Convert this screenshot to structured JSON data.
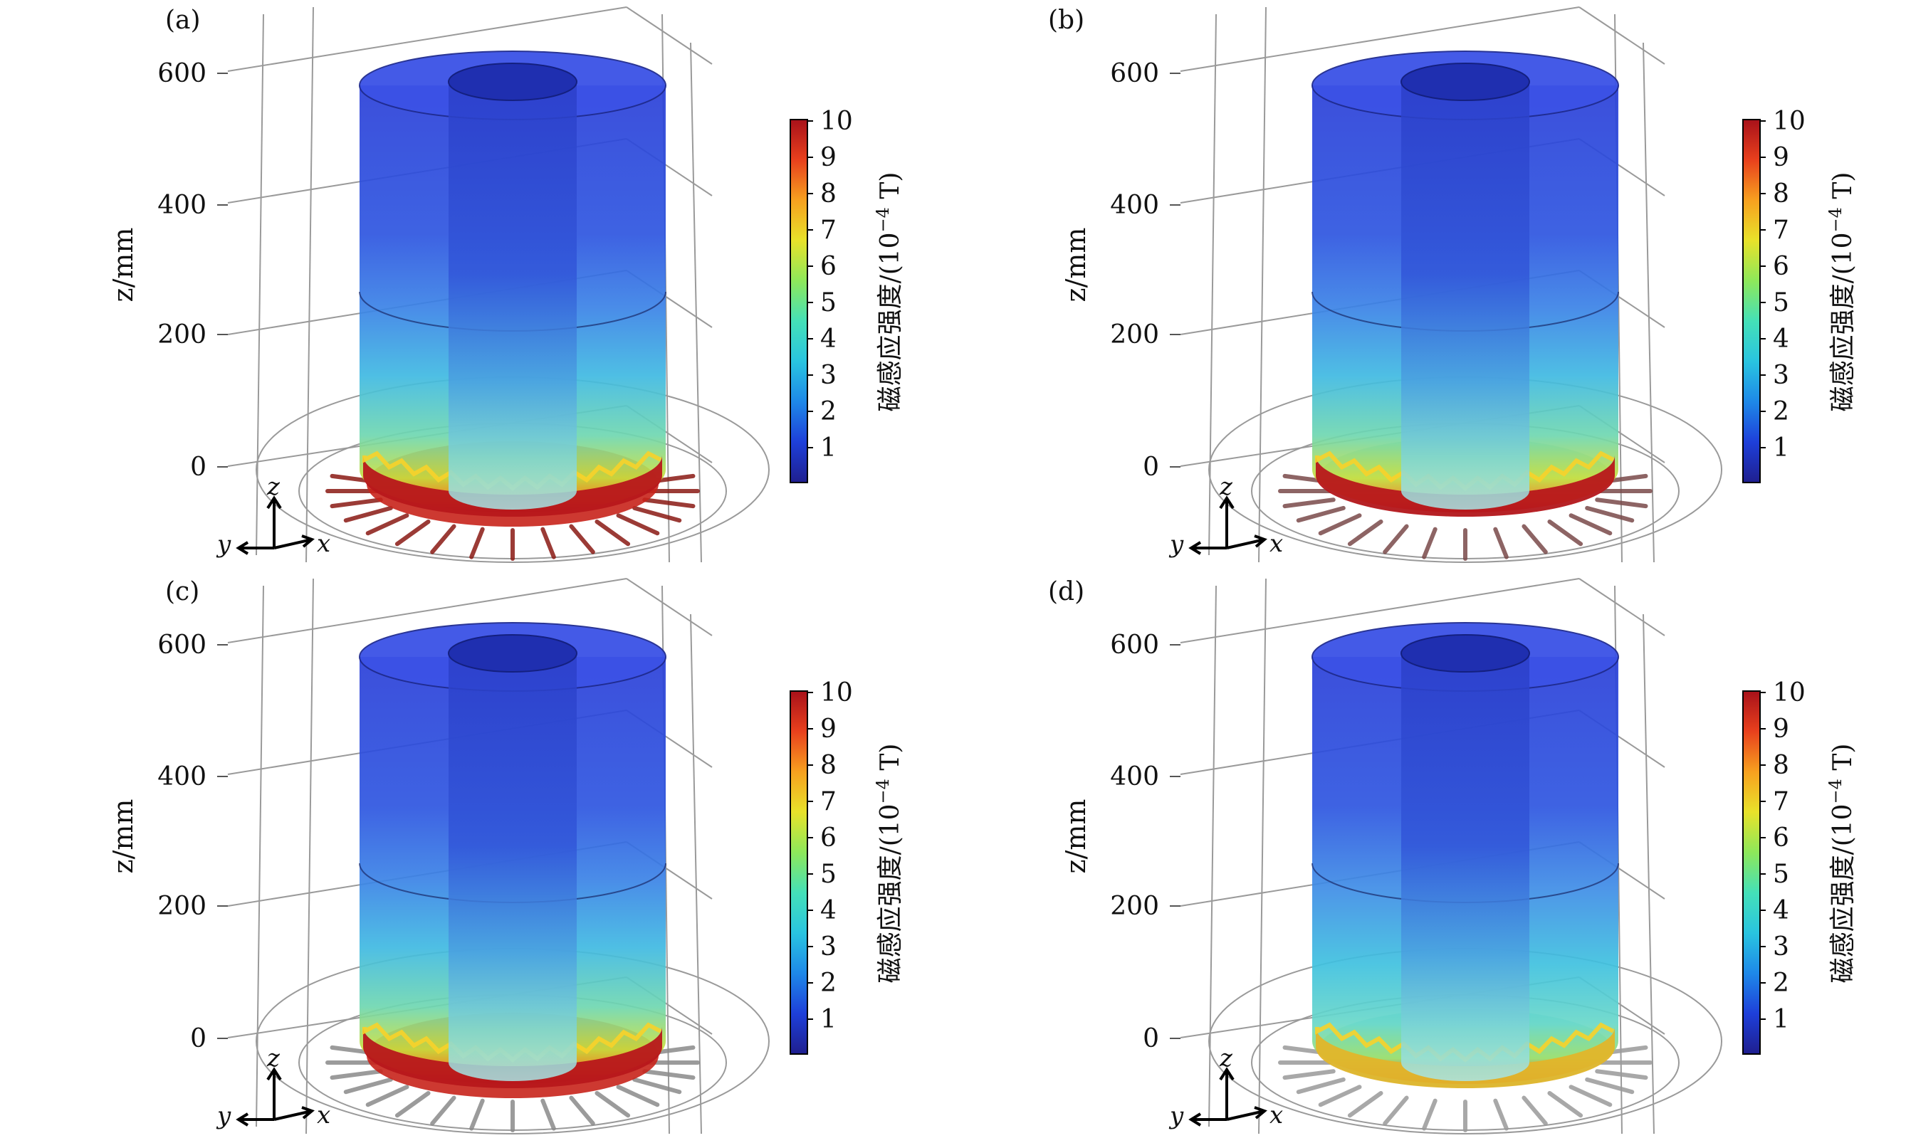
{
  "figure": {
    "colormap_stops": [
      "#1f1f8f",
      "#1e3fd9",
      "#1e88e8",
      "#29c4e0",
      "#44e0b8",
      "#8ee85a",
      "#e8e22a",
      "#f7a01f",
      "#e8401d",
      "#a8111a"
    ],
    "colorbar": {
      "ticks": [
        "10",
        "9",
        "8",
        "7",
        "6",
        "5",
        "4",
        "3",
        "2",
        "1"
      ],
      "label_text": "磁感应强度/(10",
      "label_exp": "−4",
      "label_unit": " T)"
    },
    "z_axis": {
      "ticks": [
        "600",
        "400",
        "200",
        "0"
      ],
      "label": "z/mm"
    },
    "triad": {
      "z": "z",
      "y": "y",
      "x": "x"
    },
    "panels": [
      {
        "label": "(a)",
        "variant": "a",
        "rod_color": "#8a1a14"
      },
      {
        "label": "(b)",
        "variant": "b",
        "rod_color": "#7a4a4a"
      },
      {
        "label": "(c)",
        "variant": "c",
        "rod_color": "#8a8a8a"
      },
      {
        "label": "(d)",
        "variant": "d",
        "rod_color": "#9a9a9a"
      }
    ]
  }
}
